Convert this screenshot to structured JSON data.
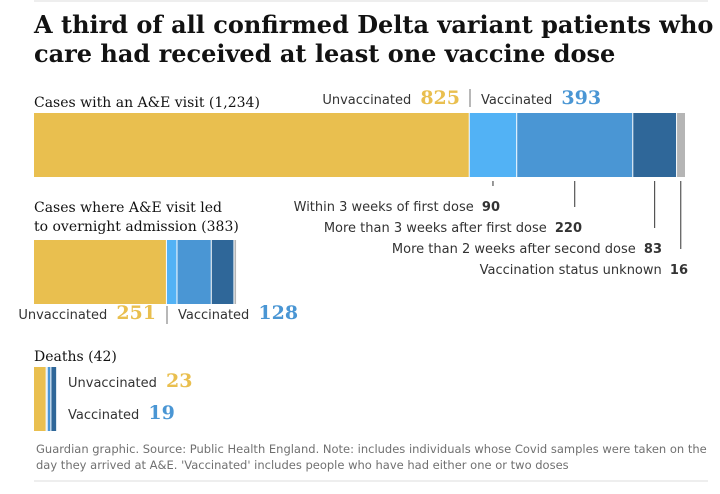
{
  "title": "A third of all confirmed Delta variant patients who needed emergency care had received at least one vaccine dose",
  "colors": {
    "unvaccinated": "#e9bf4f",
    "within_3_weeks": "#52b2f5",
    "more_than_3_weeks": "#4a96d4",
    "second_dose": "#2f6799",
    "unknown": "#b5b5b5",
    "vaccinated_text": "#4a96d4",
    "unvaccinated_text": "#e9bf4f"
  },
  "labels": {
    "unvaccinated": "Unvaccinated",
    "vaccinated": "Vaccinated"
  },
  "chart_data": {
    "type": "bar",
    "stacked": true,
    "orientation": "horizontal",
    "segments": [
      {
        "key": "unvaccinated",
        "name": "Unvaccinated"
      },
      {
        "key": "within_3_weeks",
        "name": "Within 3 weeks of first dose"
      },
      {
        "key": "more_than_3_weeks",
        "name": "More than 3 weeks after first dose"
      },
      {
        "key": "second_dose",
        "name": "More than 2 weeks after second dose"
      },
      {
        "key": "unknown",
        "name": "Vaccination status unknown"
      }
    ],
    "groups": [
      {
        "key": "ae",
        "label": "Cases with an A&E visit (1,234)",
        "total": 1234,
        "unvaccinated": 825,
        "vaccinated": 393,
        "values": [
          825,
          90,
          220,
          83,
          16
        ]
      },
      {
        "key": "admission",
        "label": "Cases where A&E visit led to overnight admission (383)",
        "total": 383,
        "unvaccinated": 251,
        "vaccinated": 128,
        "values": [
          251,
          20,
          65,
          43,
          4
        ]
      },
      {
        "key": "deaths",
        "label": "Deaths (42)",
        "total": 42,
        "unvaccinated": 23,
        "vaccinated": 19,
        "values": [
          23,
          2,
          7,
          10,
          0
        ]
      }
    ],
    "annotations": [
      {
        "segment": "within_3_weeks",
        "text": "Within 3 weeks of first dose",
        "value": "90"
      },
      {
        "segment": "more_than_3_weeks",
        "text": "More than 3 weeks after first dose",
        "value": "220"
      },
      {
        "segment": "second_dose",
        "text": "More than 2 weeks after second dose",
        "value": "83"
      },
      {
        "segment": "unknown",
        "text": "Vaccination status unknown",
        "value": "16"
      }
    ]
  },
  "source_note": "Guardian graphic. Source: Public Health England. Note: includes individuals whose Covid samples were taken on the day they arrived at A&E. 'Vaccinated' includes people who have had either one or two doses"
}
